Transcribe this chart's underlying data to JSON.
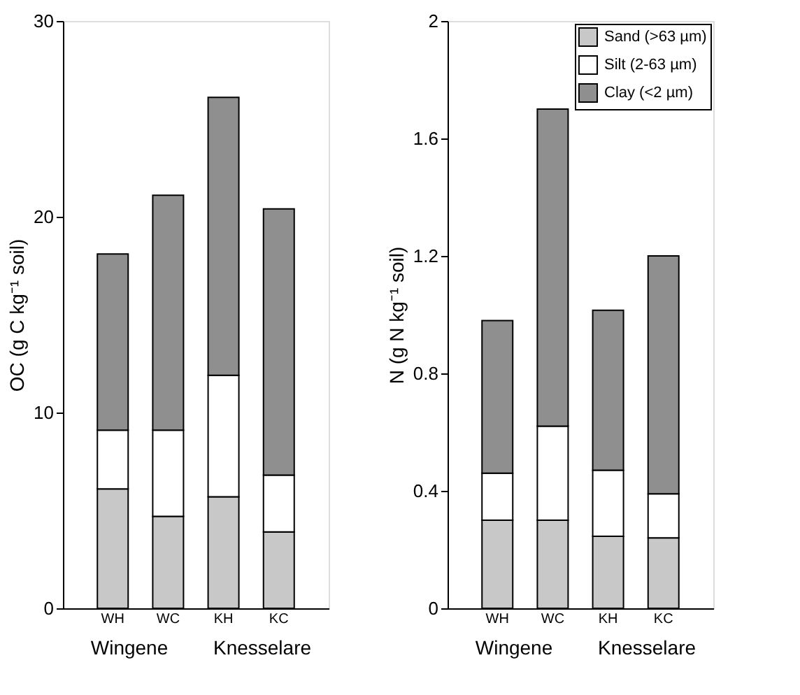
{
  "chart_data": [
    {
      "type": "bar",
      "stacked": true,
      "categories": [
        "WH",
        "WC",
        "KH",
        "KC"
      ],
      "ylabel": "OC (g C kg⁻¹ soil)",
      "ylim": [
        0,
        30
      ],
      "yticks": [
        0,
        10,
        20,
        30
      ],
      "grid": false,
      "legend": false,
      "annotations": [
        "Wingene",
        "Knesselare"
      ],
      "series": [
        {
          "color": "#c8c8c8",
          "values": [
            6.1,
            4.7,
            5.7,
            3.9
          ]
        },
        {
          "color": "#ffffff",
          "values": [
            3.0,
            4.4,
            6.2,
            2.9
          ]
        },
        {
          "color": "#8f8f8f",
          "values": [
            9.0,
            12.0,
            14.2,
            13.6
          ]
        }
      ]
    },
    {
      "type": "bar",
      "stacked": true,
      "categories": [
        "WH",
        "WC",
        "KH",
        "KC"
      ],
      "ylabel": "N (g N kg⁻¹ soil)",
      "ylim": [
        0,
        2
      ],
      "yticks": [
        0,
        0.4,
        0.8,
        1.2,
        1.6,
        2
      ],
      "grid": false,
      "legend": "top right",
      "annotations": [
        "Wingene",
        "Knesselare"
      ],
      "series": [
        {
          "name": "Sand (>63 µm)",
          "color": "#c8c8c8",
          "values": [
            0.3,
            0.3,
            0.245,
            0.24
          ]
        },
        {
          "name": "Silt (2-63 µm)",
          "color": "#ffffff",
          "values": [
            0.16,
            0.32,
            0.225,
            0.15
          ]
        },
        {
          "name": "Clay (<2 µm)",
          "color": "#8f8f8f",
          "values": [
            0.52,
            1.08,
            0.545,
            0.81
          ]
        }
      ]
    }
  ]
}
